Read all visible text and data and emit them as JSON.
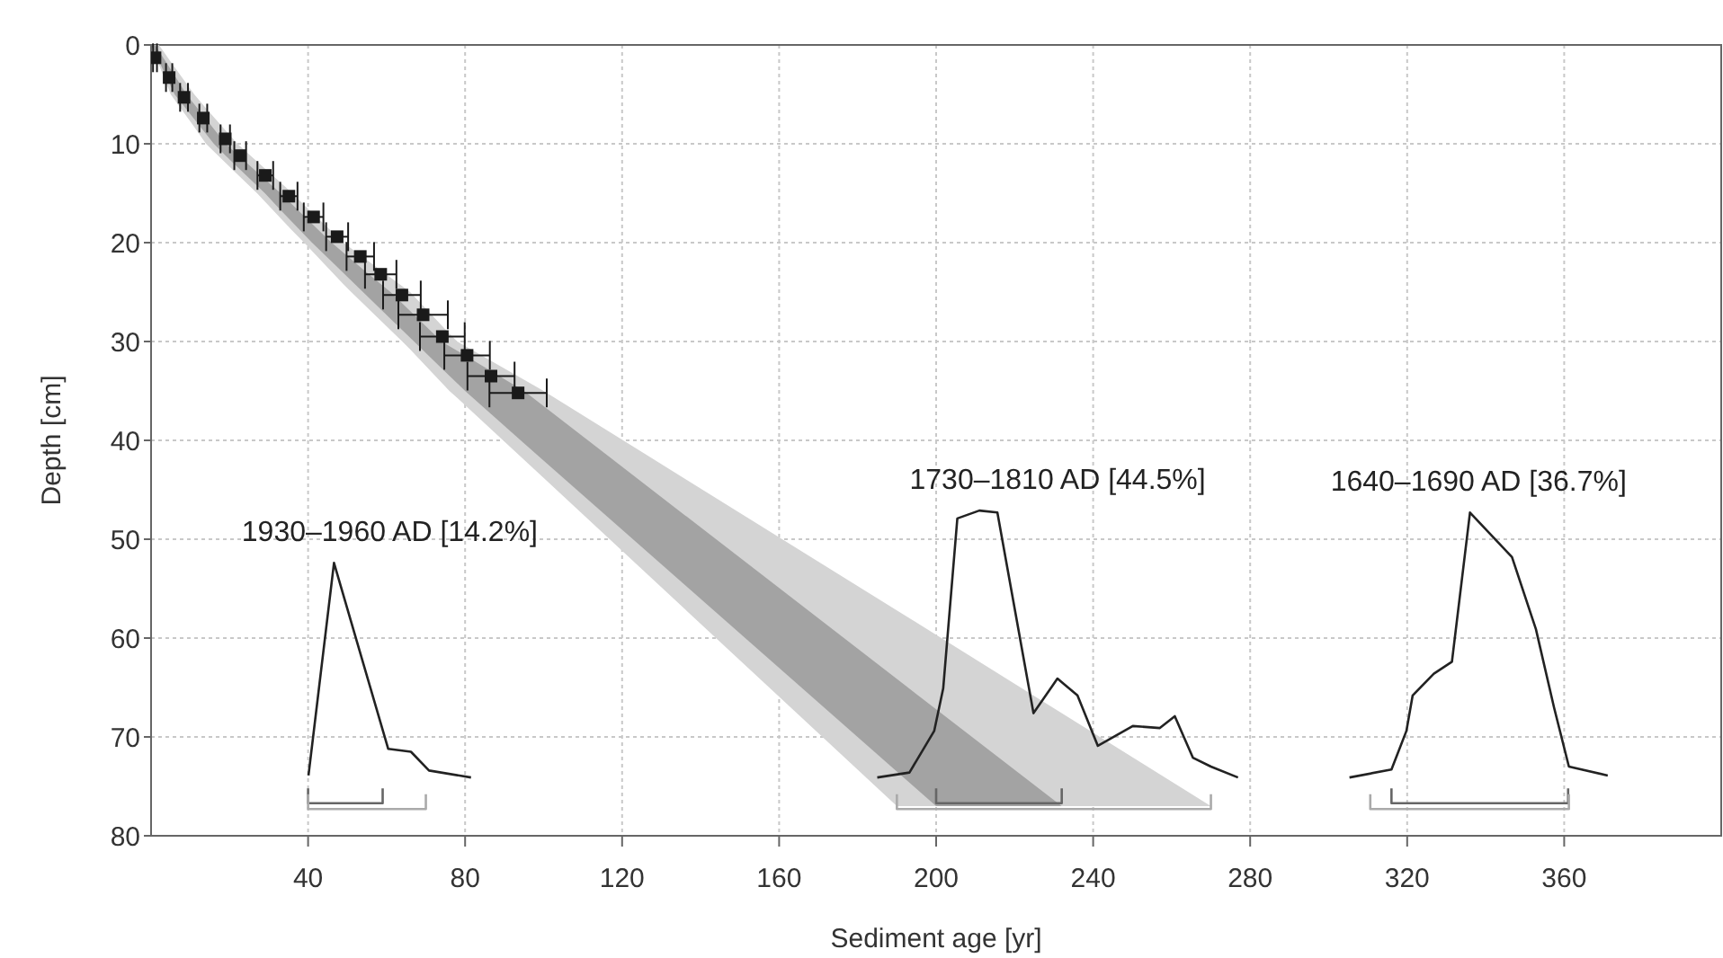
{
  "chart_data": {
    "type": "scatter",
    "xlabel": "Sediment age [yr]",
    "ylabel": "Depth [cm]",
    "xlim": [
      0,
      400
    ],
    "ylim": [
      80,
      0
    ],
    "xticks": [
      40,
      80,
      120,
      160,
      200,
      240,
      280,
      320,
      360
    ],
    "yticks": [
      0,
      10,
      20,
      30,
      40,
      50,
      60,
      70,
      80
    ],
    "grid": true,
    "series": [
      {
        "type": "area",
        "color": "#d4d4d4",
        "x": [
          0,
          2,
          5,
          11,
          14,
          22,
          27,
          36,
          39,
          49,
          51,
          64,
          66,
          76,
          78,
          100,
          190,
          270
        ],
        "values": [
          null,
          null,
          null,
          null,
          null,
          null,
          null,
          null,
          null,
          null,
          null,
          null,
          null,
          null,
          null,
          null,
          null,
          null
        ],
        "lower": [
          0,
          0,
          1.7,
          5,
          6.4,
          10,
          11.8,
          15,
          16.2,
          20,
          20.6,
          24.4,
          25,
          29.2,
          30,
          35,
          57.2,
          77
        ],
        "upper": [
          0,
          2,
          5,
          8.3,
          10,
          13.1,
          15,
          18.8,
          20,
          24.2,
          25,
          30,
          30.8,
          35,
          35.7,
          43.8,
          77,
          77
        ]
      },
      {
        "type": "area",
        "color": "#a3a3a3",
        "x": [
          0,
          1,
          6,
          9,
          16,
          19,
          29,
          33,
          41,
          46,
          54,
          61,
          67,
          74,
          80,
          95,
          200,
          232
        ],
        "values": [
          null,
          null,
          null,
          null,
          null,
          null,
          null,
          null,
          null,
          null,
          null,
          null,
          null,
          null,
          null,
          null,
          null,
          null
        ],
        "lower": [
          0,
          0,
          3.1,
          5,
          8.5,
          10,
          13.6,
          15,
          18.1,
          20,
          22.7,
          25,
          27.3,
          30,
          31.4,
          35,
          67.2,
          77
        ],
        "upper": [
          0,
          0.8,
          5,
          6.5,
          10,
          11.2,
          15,
          16.7,
          20,
          21.9,
          25,
          27.7,
          30,
          32.7,
          35,
          40.3,
          77,
          77
        ]
      },
      {
        "color": "#1a1a1a",
        "marker": "square",
        "x": [
          1,
          4.6,
          8.4,
          13.3,
          18.9,
          22.7,
          29.1,
          35.1,
          41.4,
          47.4,
          53.3,
          58.5,
          63.9,
          69.3,
          74.2,
          80.5,
          86.6,
          93.5
        ],
        "values": [
          1.3,
          3.3,
          5.3,
          7.4,
          9.5,
          11.2,
          13.2,
          15.3,
          17.4,
          19.4,
          21.4,
          23.2,
          25.3,
          27.3,
          29.5,
          31.4,
          33.5,
          35.2
        ],
        "xerrors": [
          0.5,
          0.8,
          1,
          1,
          1.2,
          1.5,
          2,
          2.2,
          2.5,
          2.8,
          3.5,
          4,
          4.8,
          6.3,
          5.7,
          5.8,
          6,
          7.3
        ]
      },
      {
        "type": "line",
        "color": "#222222",
        "x": [
          40.1,
          46.6,
          52.4,
          60.4,
          66.2,
          70.8,
          81.5
        ],
        "values": [
          73.9,
          52.4,
          60.3,
          71.2,
          71.5,
          73.4,
          74.1
        ]
      },
      {
        "type": "line",
        "color": "#222222",
        "x": [
          185,
          193.2,
          199.5,
          201.8,
          205.4,
          211,
          215.6,
          224.8,
          230.9,
          236,
          241.2,
          250.1,
          257,
          260.8,
          265.4,
          270,
          276.9
        ],
        "values": [
          74.1,
          73.6,
          69.4,
          65.1,
          47.9,
          47.1,
          47.3,
          67.6,
          64.1,
          65.8,
          70.9,
          68.9,
          69.1,
          67.9,
          72.1,
          73,
          74.1
        ]
      },
      {
        "type": "line",
        "color": "#222222",
        "x": [
          305.3,
          316,
          319.8,
          321.4,
          326.8,
          331.4,
          336,
          346.7,
          352.8,
          357.4,
          361.2,
          371.1
        ],
        "values": [
          74.1,
          73.3,
          69.4,
          65.8,
          63.6,
          62.4,
          47.3,
          51.8,
          59.1,
          67,
          73,
          73.9
        ]
      },
      {
        "type": "line",
        "color": "#666666",
        "x": [
          40,
          40,
          59,
          59
        ],
        "values": [
          75.2,
          76.7,
          76.7,
          75.2
        ]
      },
      {
        "type": "line",
        "color": "#aaaaaa",
        "x": [
          40,
          40,
          70,
          70
        ],
        "values": [
          75.8,
          77.3,
          77.3,
          75.8
        ]
      },
      {
        "type": "line",
        "color": "#666666",
        "x": [
          200,
          200,
          232,
          232
        ],
        "values": [
          75.2,
          76.7,
          76.7,
          75.2
        ]
      },
      {
        "type": "line",
        "color": "#aaaaaa",
        "x": [
          190,
          190,
          270,
          270
        ],
        "values": [
          75.8,
          77.3,
          77.3,
          75.8
        ]
      },
      {
        "type": "line",
        "color": "#666666",
        "x": [
          316,
          316,
          361,
          361
        ],
        "values": [
          75.2,
          76.7,
          76.7,
          75.2
        ]
      },
      {
        "type": "line",
        "color": "#aaaaaa",
        "x": [
          310.6,
          310.6,
          361.2,
          361.2
        ],
        "values": [
          75.8,
          77.3,
          77.3,
          75.8
        ]
      }
    ],
    "annotations": [
      "1930–1960 AD [14.2%]",
      "1730–1810 AD [44.5%]",
      "1640–1690 AD [36.7%]"
    ]
  }
}
